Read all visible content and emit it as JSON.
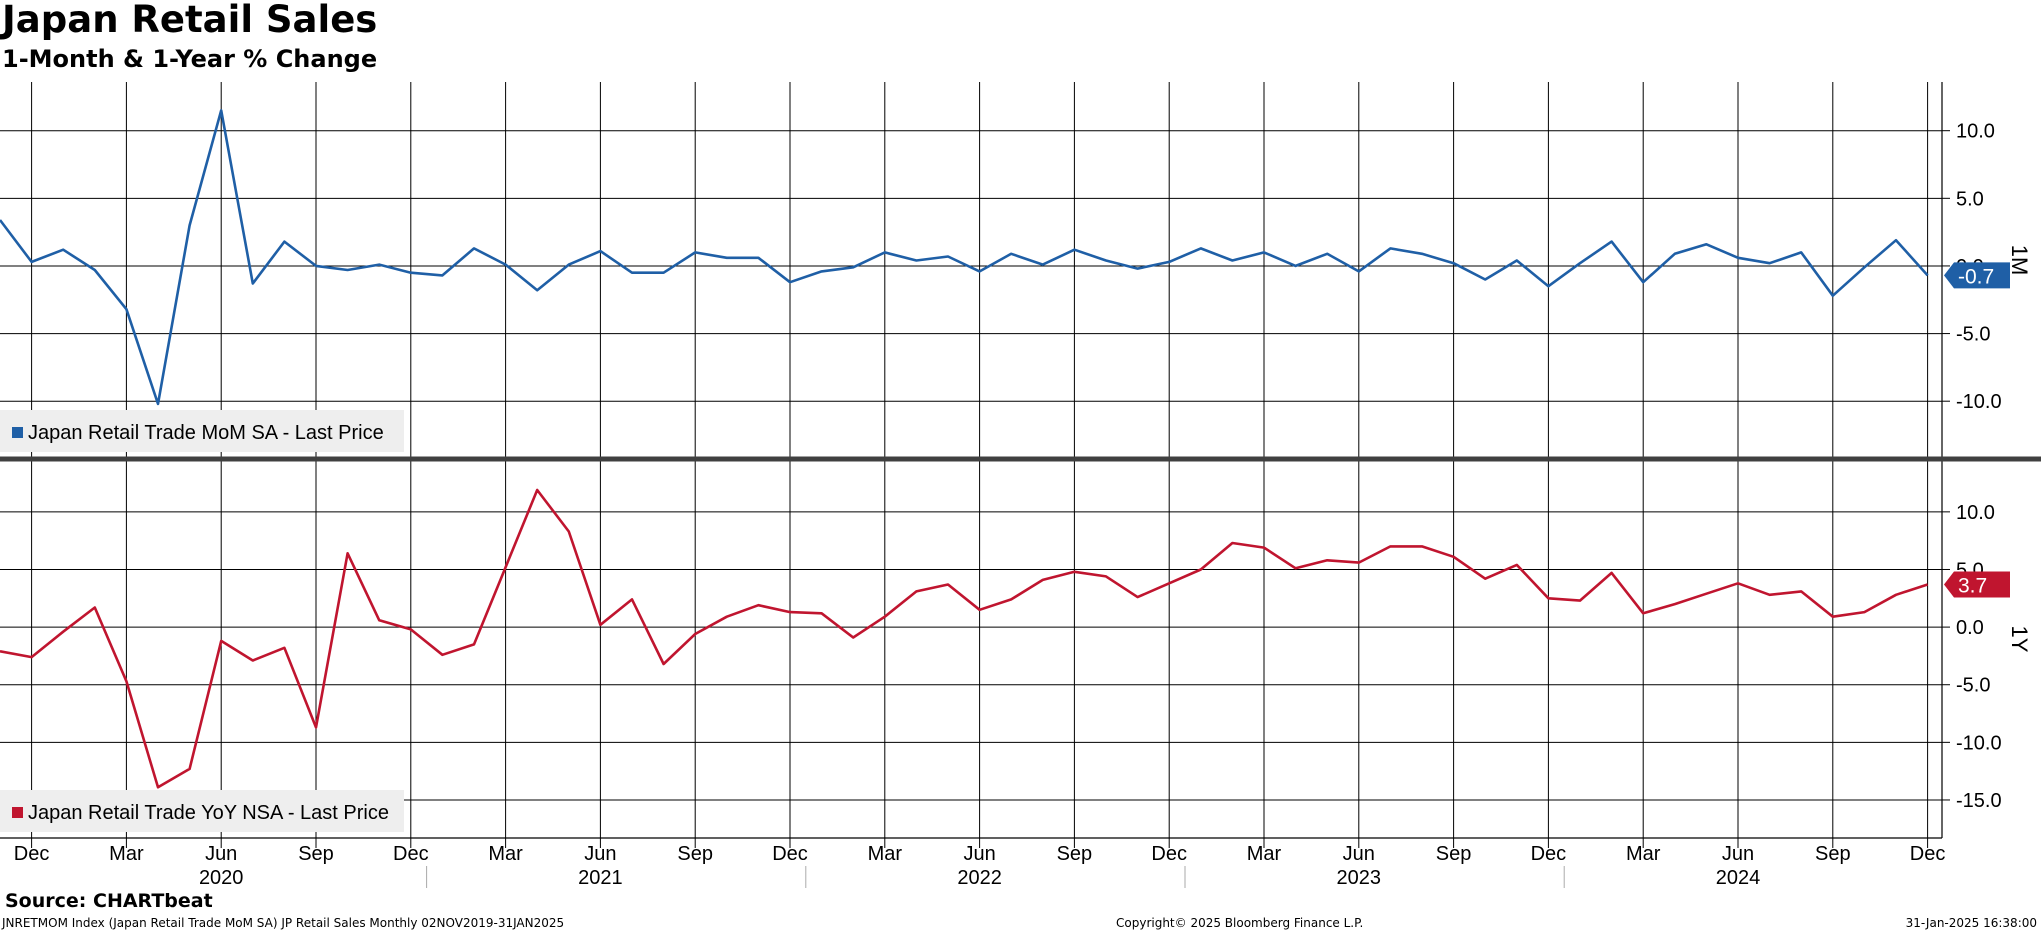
{
  "header": {
    "title": "Japan Retail Sales",
    "subtitle": "1-Month & 1-Year % Change"
  },
  "footer": {
    "source": "Source: CHARTbeat",
    "left": "JNRETMOM Index (Japan Retail Trade MoM SA) JP Retail Sales  Monthly 02NOV2019-31JAN2025",
    "center": "Copyright© 2025 Bloomberg Finance L.P.",
    "right": "31-Jan-2025 16:38:00"
  },
  "colors": {
    "mom": "#1f5fa6",
    "yoy": "#c0152f",
    "grid": "#000000",
    "divider": "#404040"
  },
  "chart_data": [
    {
      "type": "line",
      "panel_label": "1M",
      "legend": "Japan Retail Trade MoM SA - Last Price",
      "last_value_label": "-0.7",
      "ylim": [
        -14.2,
        13.6
      ],
      "yticks": [
        10.0,
        5.0,
        0.0,
        -5.0,
        -10.0
      ],
      "ytick_labels": [
        "10.0",
        "5.0",
        "0.0",
        "-5.0",
        "-10.0"
      ],
      "grid": true,
      "x_start": "2019-11",
      "series": [
        {
          "color": "#1f5fa6",
          "values": [
            3.4,
            0.3,
            1.2,
            -0.3,
            -3.2,
            -10.2,
            3.0,
            11.5,
            -1.3,
            1.8,
            0.0,
            -0.3,
            0.1,
            -0.5,
            -0.7,
            1.3,
            0.1,
            -1.8,
            0.1,
            1.1,
            -0.5,
            -0.5,
            1.0,
            0.6,
            0.6,
            -1.2,
            -0.4,
            -0.1,
            1.0,
            0.4,
            0.7,
            -0.4,
            0.9,
            0.1,
            1.2,
            0.4,
            -0.2,
            0.3,
            1.3,
            0.4,
            1.0,
            0.0,
            0.9,
            -0.4,
            1.3,
            0.9,
            0.2,
            -1.0,
            0.4,
            -1.5,
            0.2,
            1.8,
            -1.2,
            0.9,
            1.6,
            0.6,
            0.2,
            1.0,
            -2.2,
            -0.1,
            1.9,
            -0.7
          ]
        }
      ]
    },
    {
      "type": "line",
      "panel_label": "1Y",
      "legend": "Japan Retail Trade YoY NSA - Last Price",
      "last_value_label": "3.7",
      "ylim": [
        -18.3,
        14.5
      ],
      "yticks": [
        10.0,
        5.0,
        0.0,
        -5.0,
        -10.0,
        -15.0
      ],
      "ytick_labels": [
        "10.0",
        "5.0",
        "0.0",
        "-5.0",
        "-10.0",
        "-15.0"
      ],
      "grid": true,
      "x_start": "2019-11",
      "series": [
        {
          "color": "#c0152f",
          "values": [
            -2.1,
            -2.6,
            -0.4,
            1.7,
            -4.7,
            -13.9,
            -12.3,
            -1.2,
            -2.9,
            -1.8,
            -8.7,
            6.4,
            0.6,
            -0.2,
            -2.4,
            -1.5,
            5.2,
            11.9,
            8.3,
            0.2,
            2.4,
            -3.2,
            -0.6,
            0.9,
            1.9,
            1.3,
            1.2,
            -0.9,
            0.9,
            3.1,
            3.7,
            1.5,
            2.4,
            4.1,
            4.8,
            4.4,
            2.6,
            3.8,
            5.0,
            7.3,
            6.9,
            5.1,
            5.8,
            5.6,
            7.0,
            7.0,
            6.1,
            4.2,
            5.4,
            2.5,
            2.3,
            4.7,
            1.2,
            2.0,
            2.9,
            3.8,
            2.8,
            3.1,
            0.9,
            1.3,
            2.8,
            3.7
          ]
        }
      ]
    }
  ],
  "x_axis": {
    "months": [
      "Dec",
      "Mar",
      "Jun",
      "Sep",
      "Dec",
      "Mar",
      "Jun",
      "Sep",
      "Dec",
      "Mar",
      "Jun",
      "Sep",
      "Dec",
      "Mar",
      "Jun",
      "Sep",
      "Dec",
      "Mar",
      "Jun",
      "Sep",
      "Dec"
    ],
    "years": [
      "2020",
      "2021",
      "2022",
      "2023",
      "2024"
    ]
  }
}
